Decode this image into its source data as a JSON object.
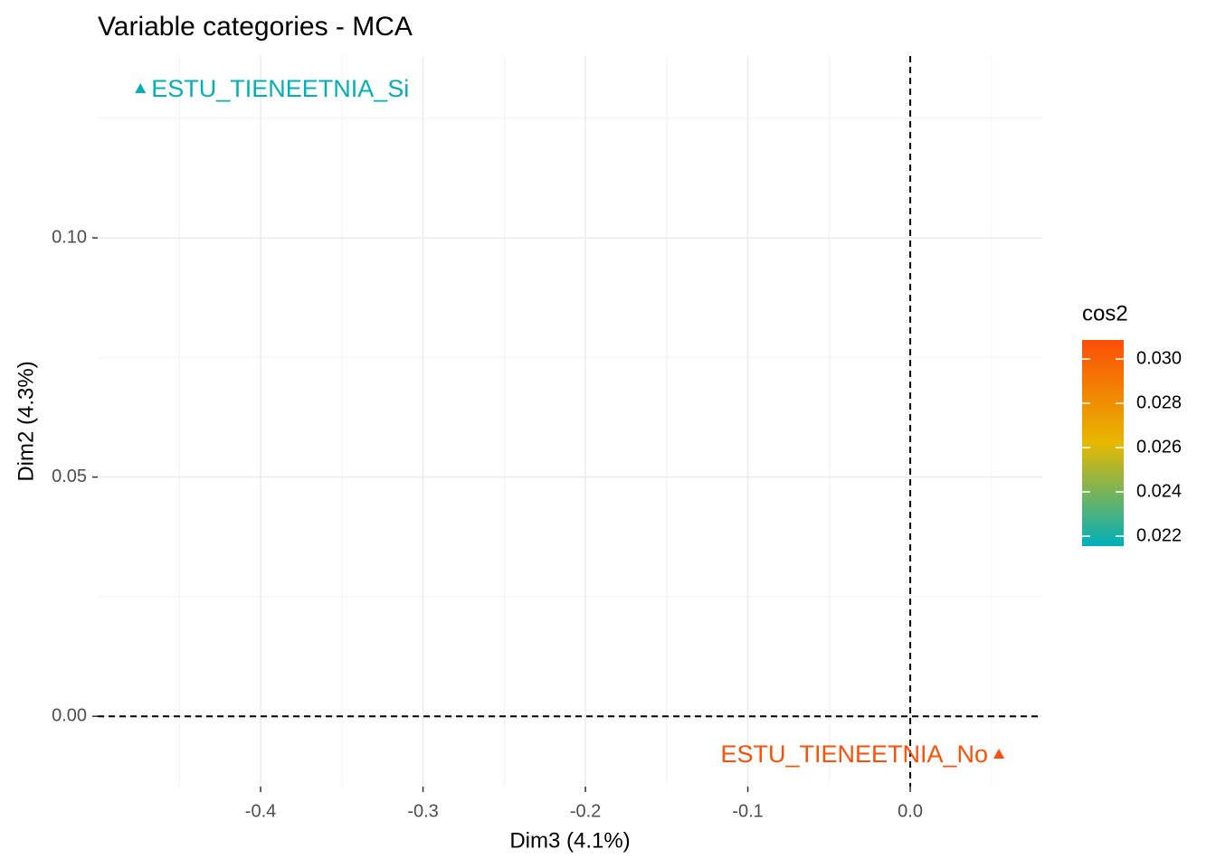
{
  "chart_data": {
    "type": "scatter",
    "title": "Variable categories - MCA",
    "xlabel": "Dim3 (4.1%)",
    "ylabel": "Dim2 (4.3%)",
    "labels": [
      "ESTU_TIENEETNIA_Si",
      "ESTU_TIENEETNIA_No"
    ],
    "x": [
      -0.474,
      0.0546
    ],
    "y": [
      0.1312,
      -0.0079
    ],
    "cos2": [
      0.0216,
      0.0308
    ],
    "xlim": [
      -0.5003,
      0.0813
    ],
    "ylim": [
      -0.0147,
      0.138
    ],
    "xticks": [
      -0.4,
      -0.3,
      -0.2,
      -0.1,
      {
        "value": 0,
        "label": "0.0"
      }
    ],
    "yticks": [
      {
        "value": 0,
        "label": "0.00"
      },
      {
        "value": 0.05,
        "label": "0.05"
      },
      {
        "value": 0.1,
        "label": "0.10"
      }
    ],
    "x_minor_ticks": [
      -0.45,
      -0.35,
      -0.25,
      -0.15,
      -0.05,
      0.05
    ],
    "y_minor_ticks": [
      0.025,
      0.075,
      0.125
    ],
    "hline": 0,
    "vline": 0,
    "grid": true,
    "legend": {
      "title": "cos2",
      "position": "right",
      "colors": [
        "#00AFBB",
        "#E7B800",
        "#FC4E07"
      ],
      "lim": [
        0.02155,
        0.03086
      ],
      "ticks": [
        {
          "value": 0.022,
          "label": "0.022"
        },
        {
          "value": 0.024,
          "label": "0.024"
        },
        {
          "value": 0.026,
          "label": "0.026"
        },
        {
          "value": 0.028,
          "label": "0.028"
        },
        {
          "value": 0.03,
          "label": "0.030"
        }
      ]
    }
  }
}
